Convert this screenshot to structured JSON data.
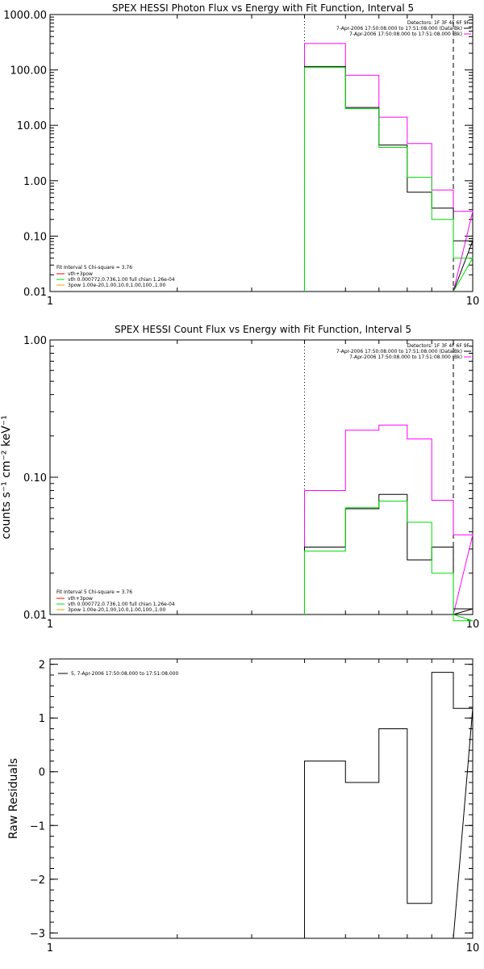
{
  "colors": {
    "black": "#000000",
    "magenta": "#ff00ff",
    "green": "#00dd00",
    "red": "#ff0000",
    "orange": "#e8a000"
  },
  "chart_data": [
    {
      "type": "line",
      "title": "SPEX HESSI Photon Flux vs Energy with Fit Function, Interval 5",
      "xlabel": "",
      "ylabel": "",
      "xscale": "log",
      "yscale": "log",
      "xlim": [
        1,
        10
      ],
      "ylim": [
        0.01,
        1000
      ],
      "xticks": [
        "1",
        "10"
      ],
      "yticks": [
        "0.01",
        "0.10",
        "1.00",
        "10.00",
        "100.00",
        "1000.00"
      ],
      "vlines": [
        {
          "x": 4.0,
          "style": "dotted"
        },
        {
          "x": 9.0,
          "style": "dashed"
        }
      ],
      "edges": [
        4.0,
        5.0,
        6.0,
        7.0,
        8.0,
        9.0
      ],
      "series": [
        {
          "color": "magenta",
          "values": [
            300,
            80,
            14,
            4.7,
            0.68,
            0.28
          ]
        },
        {
          "color": "black",
          "values": [
            115,
            21,
            4.4,
            0.62,
            0.32,
            0.082
          ]
        },
        {
          "color": "green",
          "values": [
            110,
            20,
            4.0,
            1.15,
            0.2,
            0.04
          ]
        }
      ],
      "legend_top": [
        "Detectors: 1F 3F 4F 6F 9F",
        "7-Apr-2006 17:50:08.000 to 17:51:08.000 (Data-Bk)",
        "7-Apr-2006 17:50:08.000 to 17:51:08.000 (Bk)"
      ],
      "legend_top_colors": [
        "",
        "black",
        "magenta"
      ],
      "legend_bottom": {
        "header": "Fit Interval  5     Chi-square = 3.76",
        "items": [
          {
            "color": "red",
            "label": "vth+3pow"
          },
          {
            "color": "green",
            "label": "vth 0.000772,0.736,1.00   full chian 1.26e-04"
          },
          {
            "color": "orange",
            "label": "3pow 1.00e-20,1.00,10.0,1.00,100.,1.00"
          }
        ]
      }
    },
    {
      "type": "line",
      "title": "SPEX HESSI Count Flux vs Energy with Fit Function, Interval 5",
      "xlabel": "",
      "ylabel": "counts s⁻¹ cm⁻² keV⁻¹",
      "xscale": "log",
      "yscale": "log",
      "xlim": [
        1,
        10
      ],
      "ylim": [
        0.01,
        1.0
      ],
      "xticks": [
        "1",
        "10"
      ],
      "yticks": [
        "0.01",
        "0.10",
        "1.00"
      ],
      "vlines": [
        {
          "x": 4.0,
          "style": "dotted"
        },
        {
          "x": 9.0,
          "style": "dashed"
        }
      ],
      "edges": [
        4.0,
        5.0,
        6.0,
        7.0,
        8.0,
        9.0
      ],
      "series": [
        {
          "color": "magenta",
          "values": [
            0.08,
            0.22,
            0.24,
            0.19,
            0.068,
            0.038
          ]
        },
        {
          "color": "black",
          "values": [
            0.031,
            0.059,
            0.075,
            0.025,
            0.031,
            0.011
          ]
        },
        {
          "color": "green",
          "values": [
            0.029,
            0.06,
            0.067,
            0.047,
            0.02,
            0.009
          ]
        }
      ],
      "legend_top": [
        "Detectors: 1F 3F 4F 6F 9F",
        "7-Apr-2006 17:50:08.000 to 17:51:08.000 (Data-Bk)",
        "7-Apr-2006 17:50:08.000 to 17:51:08.000 (Bk)"
      ],
      "legend_top_colors": [
        "",
        "black",
        "magenta"
      ],
      "legend_bottom": {
        "header": "Fit Interval  5     Chi-square = 3.76",
        "items": [
          {
            "color": "red",
            "label": "vth+3pow"
          },
          {
            "color": "green",
            "label": "vth 0.000772,0.736,1.00   full chian 1.26e-04"
          },
          {
            "color": "orange",
            "label": "3pow 1.00e-20,1.00,10.0,1.00,100.,1.00"
          }
        ]
      }
    },
    {
      "type": "line",
      "title": "",
      "xlabel": "",
      "ylabel": "Raw  Residuals",
      "xscale": "log",
      "yscale": "linear",
      "xlim": [
        1,
        10
      ],
      "ylim": [
        -3.1,
        2.1
      ],
      "xticks": [
        "1",
        "10"
      ],
      "yticks": [
        "−3",
        "−2",
        "−1",
        "0",
        "1",
        "2"
      ],
      "yticks_values": [
        -3,
        -2,
        -1,
        0,
        1,
        2
      ],
      "vlines": [],
      "edges": [
        4.0,
        5.0,
        6.0,
        7.0,
        8.0,
        9.0
      ],
      "series": [
        {
          "color": "black",
          "values": [
            0.2,
            -0.2,
            0.8,
            -2.45,
            1.85,
            1.18
          ]
        }
      ],
      "legend_top": [
        "5,  7-Apr-2006 17:50:08.000 to 17:51:08.000"
      ],
      "legend_top_colors": [
        "black"
      ],
      "legend_bottom": null
    }
  ]
}
